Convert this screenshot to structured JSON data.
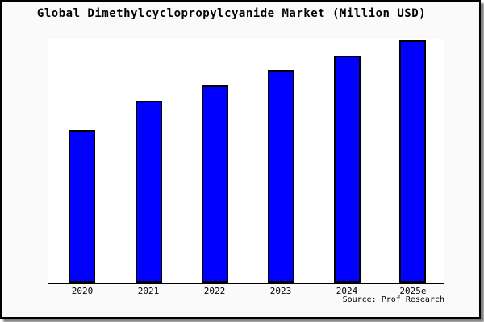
{
  "chart": {
    "title": "Global Dimethylcyclopropylcyanide Market (Million USD)",
    "source": "Source: Prof Research"
  },
  "chart_data": {
    "type": "bar",
    "title": "Global Dimethylcyclopropylcyanide Market (Million USD)",
    "categories": [
      "2020",
      "2021",
      "2022",
      "2023",
      "2024",
      "2025e"
    ],
    "values": [
      189,
      226,
      245,
      264,
      282,
      301
    ],
    "values_note": "y-axis has no tick labels; values are relative bar heights estimated from the plot (plot full height = 302)",
    "xlabel": "",
    "ylabel": "",
    "ylim": [
      0,
      302
    ],
    "grid": false,
    "legend": false,
    "source": "Source: Prof Research",
    "colors": {
      "bar_fill": "#0000ff",
      "bar_edge": "#000000",
      "plot_background": "#ffffff",
      "figure_background": "#fafafa",
      "border": "#000000",
      "shadow": "#7f7f7f"
    }
  }
}
